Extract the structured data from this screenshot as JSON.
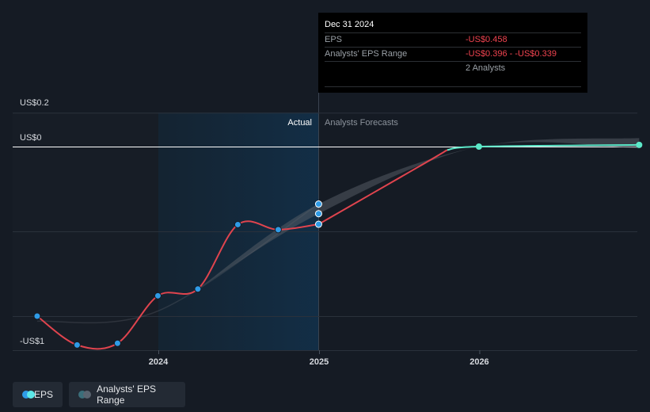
{
  "chart_data": {
    "type": "line",
    "title": "",
    "xlabel": "",
    "ylabel": "",
    "x_ticks": [
      "2024",
      "2025",
      "2026"
    ],
    "y_ticks": [
      {
        "value": 0.2,
        "label": "US$0.2"
      },
      {
        "value": 0,
        "label": "US$0"
      },
      {
        "value": -1,
        "label": "-US$1"
      }
    ],
    "ylim": [
      -1.2,
      0.2
    ],
    "regions": {
      "actual_label": "Actual",
      "forecast_label": "Analysts Forecasts"
    },
    "series": [
      {
        "name": "EPS",
        "kind": "actual",
        "points": [
          {
            "x": "2023-03-31",
            "y": -1.0
          },
          {
            "x": "2023-06-30",
            "y": -1.17
          },
          {
            "x": "2023-09-30",
            "y": -1.16
          },
          {
            "x": "2023-12-31",
            "y": -0.88
          },
          {
            "x": "2024-03-31",
            "y": -0.84
          },
          {
            "x": "2024-06-30",
            "y": -0.46
          },
          {
            "x": "2024-09-30",
            "y": -0.49
          },
          {
            "x": "2024-12-31",
            "y": -0.458
          }
        ]
      },
      {
        "name": "EPS",
        "kind": "forecast",
        "points": [
          {
            "x": "2024-12-31",
            "y": -0.458
          },
          {
            "x": "2025-12-31",
            "y": 0.0
          },
          {
            "x": "2026-12-31",
            "y": 0.01
          }
        ]
      },
      {
        "name": "Analysts' EPS Range",
        "kind": "range",
        "points": [
          {
            "x": "2024-12-31",
            "low": -0.396,
            "high": -0.339
          },
          {
            "x": "2025-12-31",
            "low": 0.0,
            "high": 0.0
          },
          {
            "x": "2026-12-31",
            "low": -0.01,
            "high": 0.05
          }
        ]
      }
    ],
    "grid": true,
    "legend_position": "bottom-left"
  },
  "tooltip": {
    "date": "Dec 31 2024",
    "eps_label": "EPS",
    "eps_value": "-US$0.458",
    "range_label": "Analysts' EPS Range",
    "range_value": "-US$0.396 - -US$0.339",
    "analysts": "2 Analysts"
  },
  "legend": {
    "eps": "EPS",
    "range": "Analysts' EPS Range"
  },
  "colors": {
    "background": "#151b24",
    "actual_line": "#e0444e",
    "forecast_line": "#5ce8c8",
    "point": "#2f9be6",
    "band": "#5a5f68",
    "highlight": "#0f2a40"
  }
}
